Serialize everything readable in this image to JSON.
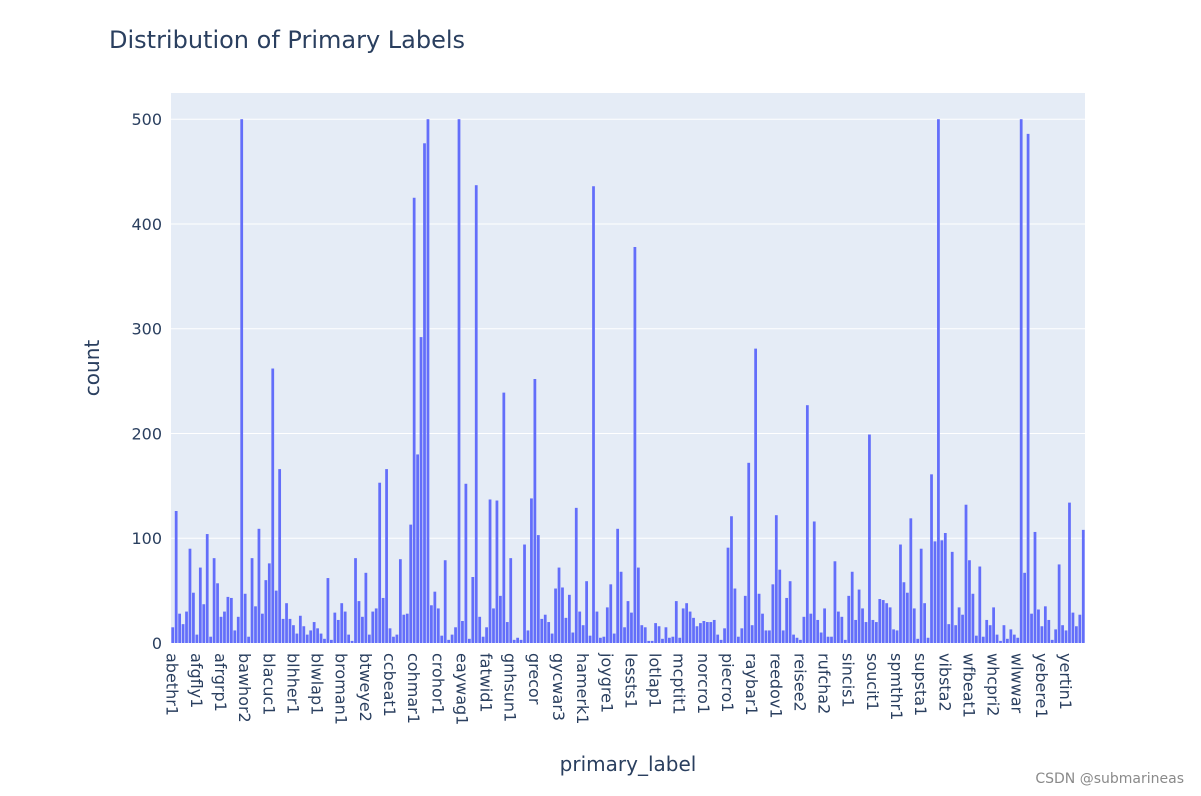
{
  "chart_data": {
    "type": "bar",
    "title": "Distribution of Primary Labels",
    "xlabel": "primary_label",
    "ylabel": "count",
    "ylim": [
      0,
      525
    ],
    "y_ticks": [
      0,
      100,
      200,
      300,
      400,
      500
    ],
    "grid": true,
    "legend": "none",
    "bar_color": "#636efa",
    "plot_bg": "#e5ecf6",
    "tick_labels": [
      "abethr1",
      "afgfly1",
      "afrgrp1",
      "bawhor2",
      "blacuc1",
      "blhher1",
      "blwlap1",
      "broman1",
      "btweye2",
      "ccbeat1",
      "cohmar1",
      "crohor1",
      "eaywag1",
      "fatwid1",
      "gnhsun1",
      "grecor",
      "gycwar3",
      "hamerk1",
      "joygre1",
      "lessts1",
      "lotlap1",
      "mcptit1",
      "norcro1",
      "piecro1",
      "raybar1",
      "reedov1",
      "reisee2",
      "rufcha2",
      "sincis1",
      "soucit1",
      "spmthr1",
      "supsta1",
      "vibsta2",
      "wfbeat1",
      "whcpri2",
      "wlwwar",
      "yebere1",
      "yertin1"
    ],
    "values": [
      15,
      126,
      28,
      18,
      30,
      90,
      48,
      8,
      72,
      37,
      104,
      6,
      81,
      57,
      25,
      30,
      44,
      43,
      12,
      25,
      500,
      47,
      6,
      81,
      35,
      109,
      28,
      60,
      76,
      262,
      50,
      166,
      23,
      38,
      23,
      17,
      9,
      26,
      16,
      8,
      12,
      20,
      14,
      9,
      4,
      62,
      3,
      29,
      22,
      38,
      30,
      8,
      2,
      81,
      40,
      25,
      67,
      8,
      30,
      33,
      153,
      43,
      166,
      14,
      6,
      8,
      80,
      27,
      28,
      113,
      425,
      180,
      292,
      477,
      500,
      36,
      49,
      33,
      7,
      79,
      3,
      8,
      15,
      500,
      21,
      152,
      4,
      63,
      437,
      25,
      6,
      15,
      137,
      33,
      136,
      45,
      239,
      20,
      81,
      3,
      5,
      3,
      94,
      12,
      138,
      252,
      103,
      23,
      27,
      20,
      9,
      52,
      72,
      53,
      24,
      46,
      10,
      129,
      30,
      17,
      59,
      7,
      436,
      30,
      5,
      6,
      34,
      56,
      9,
      109,
      68,
      15,
      40,
      29,
      378,
      72,
      17,
      15,
      2,
      2,
      19,
      16,
      4,
      15,
      5,
      6,
      40,
      5,
      33,
      38,
      30,
      24,
      16,
      19,
      21,
      20,
      20,
      22,
      8,
      3,
      14,
      91,
      121,
      52,
      6,
      14,
      45,
      172,
      17,
      281,
      47,
      28,
      12,
      12,
      56,
      122,
      70,
      12,
      43,
      59,
      8,
      5,
      3,
      25,
      227,
      28,
      116,
      22,
      10,
      33,
      6,
      6,
      78,
      30,
      25,
      3,
      45,
      68,
      22,
      51,
      33,
      20,
      199,
      22,
      20,
      42,
      41,
      38,
      34,
      13,
      12,
      94,
      58,
      48,
      119,
      33,
      4,
      90,
      38,
      5,
      161,
      97,
      500,
      98,
      105,
      18,
      87,
      17,
      34,
      27,
      132,
      79,
      47,
      7,
      73,
      6,
      22,
      17,
      34,
      8,
      2,
      17,
      4,
      13,
      8,
      5,
      500,
      67,
      486,
      28,
      106,
      32,
      16,
      35,
      22,
      3,
      13,
      75,
      17,
      12,
      134,
      29,
      16,
      27,
      108
    ]
  },
  "watermark": "CSDN @submarineas"
}
